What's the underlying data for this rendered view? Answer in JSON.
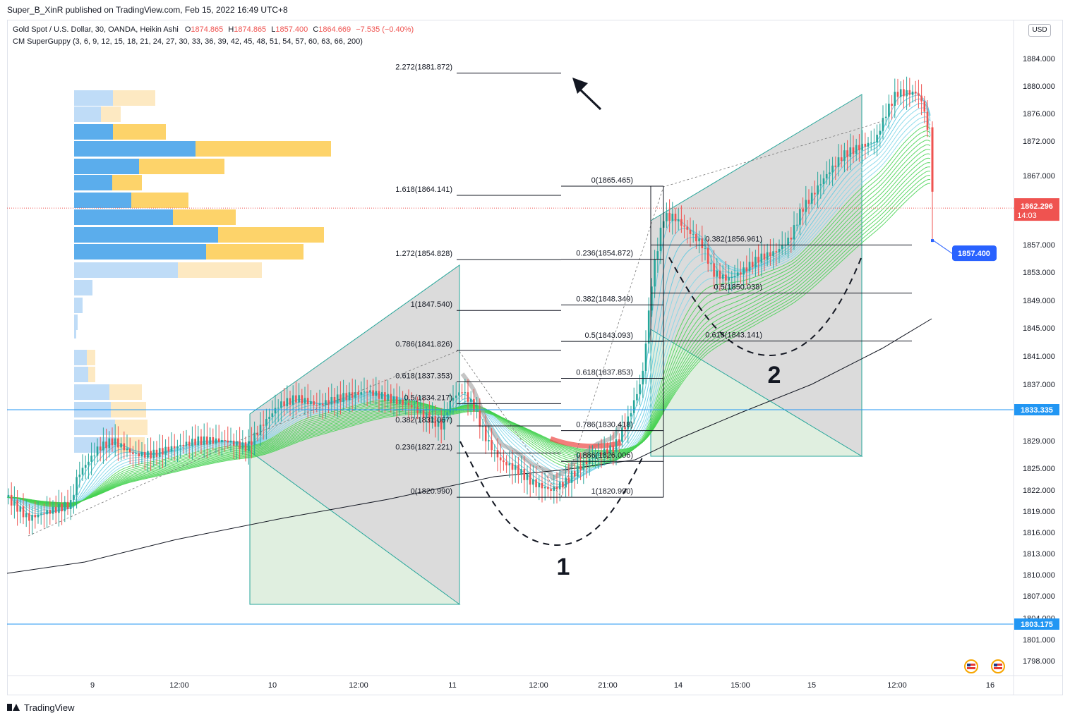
{
  "header": {
    "published_by": "Super_B_XinR published on TradingView.com, Feb 15, 2022 16:49 UTC+8"
  },
  "legend": {
    "symbol": "Gold Spot / U.S. Dollar, 30, OANDA, Heikin Ashi",
    "open_label": "O",
    "open": "1874.865",
    "high_label": "H",
    "high": "1874.865",
    "low_label": "L",
    "low": "1857.400",
    "close_label": "C",
    "close": "1864.669",
    "change": "−7.535 (−0.40%)",
    "indicator": "CM SuperGuppy (3, 6, 9, 12, 15, 18, 21, 24, 27, 30, 33, 36, 39, 42, 45, 48, 51, 54, 57, 60, 63, 66, 200)"
  },
  "currency_button": "USD",
  "footer": {
    "brand": "TradingView"
  },
  "chart_data": {
    "type": "candlestick",
    "y_axis": {
      "ticks": [
        "1880.000",
        "1876.000",
        "1872.000",
        "1867.000",
        "1857.000",
        "1853.000",
        "1849.000",
        "1845.000",
        "1841.000",
        "1837.000",
        "1829.000",
        "1825.000",
        "1822.000",
        "1819.000",
        "1816.000",
        "1813.000",
        "1810.000",
        "1807.000",
        "1804.000",
        "1801.000",
        "1798.000",
        "1884.000"
      ],
      "tick_values": [
        1880,
        1876,
        1872,
        1867,
        1857,
        1853,
        1849,
        1845,
        1841,
        1837,
        1829,
        1825,
        1822,
        1819,
        1816,
        1813,
        1810,
        1807,
        1804,
        1801,
        1798,
        1884
      ],
      "range": [
        1795,
        1890
      ]
    },
    "x_axis": {
      "ticks": [
        "9",
        "12:00",
        "10",
        "12:00",
        "11",
        "12:00",
        "21:00",
        "14",
        "15:00",
        "15",
        "12:00",
        "16"
      ]
    },
    "price_labels": [
      {
        "text": "1862.296",
        "sub": "14:03",
        "color": "#ef5350",
        "value": 1862.296
      },
      {
        "text": "1857.400",
        "color": "#2962ff",
        "value": 1857.4
      },
      {
        "text": "1833.335",
        "color": "#2196f3",
        "value": 1833.335
      },
      {
        "text": "1803.175",
        "color": "#2196f3",
        "value": 1803.175
      }
    ],
    "fib_extension": [
      {
        "label": "2.272(1881.872)",
        "value": 1881.872
      },
      {
        "label": "1.618(1864.141)",
        "value": 1864.141
      },
      {
        "label": "1.272(1854.828)",
        "value": 1854.828
      },
      {
        "label": "1(1847.540)",
        "value": 1847.54
      },
      {
        "label": "0.786(1841.826)",
        "value": 1841.826
      },
      {
        "label": "0.618(1837.353)",
        "value": 1837.353
      },
      {
        "label": "0.5(1834.217)",
        "value": 1834.217
      },
      {
        "label": "0.382(1831.067)",
        "value": 1831.067
      },
      {
        "label": "0.236(1827.221)",
        "value": 1827.221
      },
      {
        "label": "0(1820.990)",
        "value": 1820.99
      }
    ],
    "fib_retracement_mid": [
      {
        "label": "0(1865.465)",
        "value": 1865.465
      },
      {
        "label": "0.236(1854.872)",
        "value": 1854.872
      },
      {
        "label": "0.382(1848.349)",
        "value": 1848.349
      },
      {
        "label": "0.5(1843.093)",
        "value": 1843.093
      },
      {
        "label": "0.618(1837.853)",
        "value": 1837.853
      },
      {
        "label": "0.786(1830.418)",
        "value": 1830.418
      },
      {
        "label": "0.886(1826.006)",
        "value": 1826.006
      },
      {
        "label": "1(1820.990)",
        "value": 1820.99
      }
    ],
    "fib_retracement_right": [
      {
        "label": "0.382(1856.961)",
        "value": 1856.961
      },
      {
        "label": "0.5(1850.038)",
        "value": 1850.038
      },
      {
        "label": "0.618(1843.141)",
        "value": 1843.141
      }
    ],
    "annotations": [
      "1",
      "2"
    ]
  }
}
